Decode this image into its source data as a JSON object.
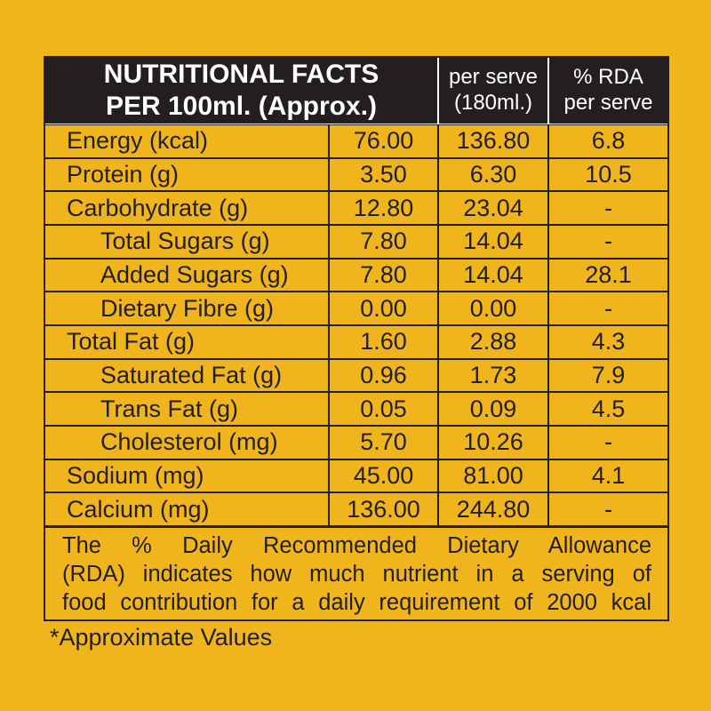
{
  "header": {
    "title": [
      "NUTRITIONAL FACTS",
      "PER 100ml. (Approx.)"
    ],
    "per_serve": [
      "per serve",
      "(180ml.)"
    ],
    "rda": [
      "% RDA",
      "per serve"
    ]
  },
  "table": {
    "rows": [
      {
        "cells": [
          "Energy (kcal)",
          "76.00",
          "136.80",
          "6.8"
        ]
      },
      {
        "cells": [
          "Protein (g)",
          "3.50",
          "6.30",
          "10.5"
        ]
      },
      {
        "cells": [
          "Carbohydrate (g)",
          "12.80",
          "23.04",
          "-"
        ],
        "children": [
          {
            "cells": [
              "Total Sugars (g)",
              "7.80",
              "14.04",
              "-"
            ]
          },
          {
            "cells": [
              "Added Sugars (g)",
              "7.80",
              "14.04",
              "28.1"
            ]
          },
          {
            "cells": [
              "Dietary Fibre (g)",
              "0.00",
              "0.00",
              "-"
            ]
          }
        ]
      },
      {
        "cells": [
          "Total Fat (g)",
          "1.60",
          "2.88",
          "4.3"
        ],
        "children": [
          {
            "cells": [
              "Saturated Fat (g)",
              "0.96",
              "1.73",
              "7.9"
            ]
          },
          {
            "cells": [
              "Trans Fat (g)",
              "0.05",
              "0.09",
              "4.5"
            ]
          },
          {
            "cells": [
              "Cholesterol (mg)",
              "5.70",
              "10.26",
              "-"
            ]
          }
        ]
      },
      {
        "cells": [
          "Sodium (mg)",
          "45.00",
          "81.00",
          "4.1"
        ]
      },
      {
        "cells": [
          "Calcium (mg)",
          "136.00",
          "244.80",
          "-"
        ]
      }
    ]
  },
  "note": [
    "The % Daily Recommended Dietary Allowance",
    "(RDA) indicates how much nutrient in a serving of",
    "food contribution for a daily requirement of 2000 kcal"
  ],
  "footnote": "*Approximate Values"
}
